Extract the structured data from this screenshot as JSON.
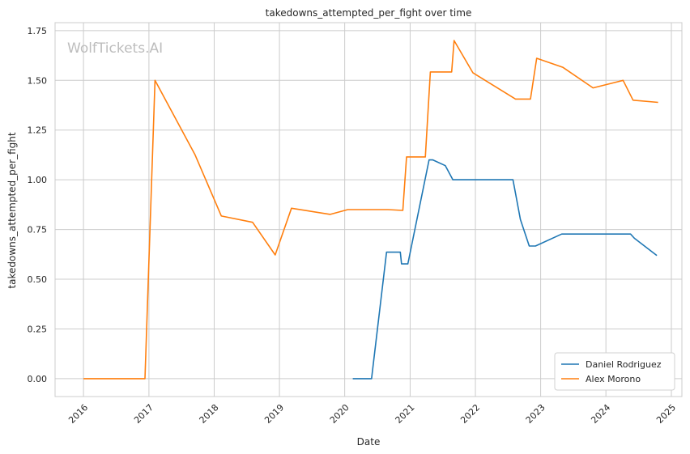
{
  "chart_data": {
    "type": "line",
    "title": "takedowns_attempted_per_fight over time",
    "xlabel": "Date",
    "ylabel": "takedowns_attempted_per_fight",
    "watermark": "WolfTickets.AI",
    "x_ticks": [
      "2016",
      "2017",
      "2018",
      "2019",
      "2020",
      "2021",
      "2022",
      "2023",
      "2024",
      "2025"
    ],
    "y_ticks": [
      "0.00",
      "0.25",
      "0.50",
      "0.75",
      "1.00",
      "1.25",
      "1.50",
      "1.75"
    ],
    "xlim": [
      "2015-07-26",
      "2025-03-01"
    ],
    "ylim": [
      -0.09,
      1.79
    ],
    "grid": true,
    "legend_position": "bottom-right",
    "series": [
      {
        "name": "Daniel Rodriguez",
        "color": "#1f77b4",
        "points": [
          {
            "x": "2020-02-15",
            "y": 0.0
          },
          {
            "x": "2020-05-30",
            "y": 0.0
          },
          {
            "x": "2020-08-22",
            "y": 0.636
          },
          {
            "x": "2020-11-07",
            "y": 0.636
          },
          {
            "x": "2020-11-14",
            "y": 0.577
          },
          {
            "x": "2020-12-19",
            "y": 0.577
          },
          {
            "x": "2021-04-17",
            "y": 1.1
          },
          {
            "x": "2021-05-08",
            "y": 1.1
          },
          {
            "x": "2021-07-17",
            "y": 1.071
          },
          {
            "x": "2021-08-28",
            "y": 1.0
          },
          {
            "x": "2022-07-30",
            "y": 1.0
          },
          {
            "x": "2022-09-10",
            "y": 0.8
          },
          {
            "x": "2022-10-29",
            "y": 0.667
          },
          {
            "x": "2022-12-03",
            "y": 0.667
          },
          {
            "x": "2023-04-29",
            "y": 0.727
          },
          {
            "x": "2024-05-18",
            "y": 0.727
          },
          {
            "x": "2024-06-08",
            "y": 0.706
          },
          {
            "x": "2024-10-12",
            "y": 0.619
          }
        ]
      },
      {
        "name": "Alex Morono",
        "color": "#ff7f0e",
        "points": [
          {
            "x": "2016-01-01",
            "y": 0.0
          },
          {
            "x": "2016-12-10",
            "y": 0.0
          },
          {
            "x": "2017-02-04",
            "y": 1.5
          },
          {
            "x": "2017-09-16",
            "y": 1.125
          },
          {
            "x": "2018-02-10",
            "y": 0.818
          },
          {
            "x": "2018-08-04",
            "y": 0.786
          },
          {
            "x": "2018-12-08",
            "y": 0.622
          },
          {
            "x": "2019-03-09",
            "y": 0.857
          },
          {
            "x": "2019-10-12",
            "y": 0.826
          },
          {
            "x": "2020-01-18",
            "y": 0.85
          },
          {
            "x": "2020-08-29",
            "y": 0.85
          },
          {
            "x": "2020-11-21",
            "y": 0.846
          },
          {
            "x": "2020-12-12",
            "y": 1.115
          },
          {
            "x": "2021-03-27",
            "y": 1.115
          },
          {
            "x": "2021-04-24",
            "y": 1.542
          },
          {
            "x": "2021-08-21",
            "y": 1.542
          },
          {
            "x": "2021-09-04",
            "y": 1.7
          },
          {
            "x": "2021-12-18",
            "y": 1.538
          },
          {
            "x": "2022-08-13",
            "y": 1.406
          },
          {
            "x": "2022-11-05",
            "y": 1.406
          },
          {
            "x": "2022-12-10",
            "y": 1.611
          },
          {
            "x": "2023-05-06",
            "y": 1.565
          },
          {
            "x": "2023-10-21",
            "y": 1.462
          },
          {
            "x": "2024-04-06",
            "y": 1.5
          },
          {
            "x": "2024-06-01",
            "y": 1.4
          },
          {
            "x": "2024-10-19",
            "y": 1.389
          }
        ]
      }
    ]
  }
}
